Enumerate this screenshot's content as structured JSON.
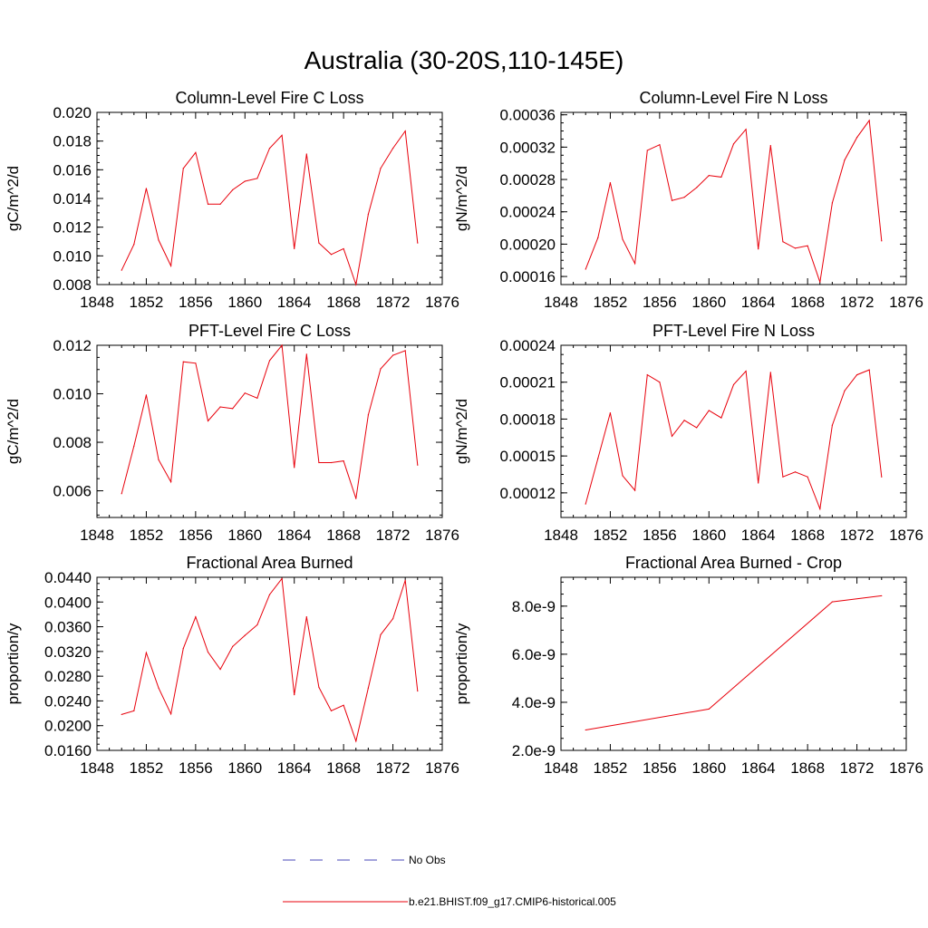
{
  "figure": {
    "title": "Australia (30-20S,110-145E)",
    "colors": {
      "model": "#e8000b",
      "obs": "#4a4ab8",
      "axis": "#000000"
    }
  },
  "legend": {
    "entries": [
      {
        "label": "No Obs",
        "style": "dashed",
        "color": "#4a4ab8"
      },
      {
        "label": "b.e21.BHIST.f09_g17.CMIP6-historical.005",
        "style": "solid",
        "color": "#e8000b"
      }
    ]
  },
  "chart_data": [
    {
      "type": "line",
      "title": "Column-Level Fire C Loss",
      "xlabel": "",
      "ylabel": "gC/m^2/d",
      "xlim": [
        1848,
        1876
      ],
      "ylim": [
        0.008,
        0.02
      ],
      "x_ticks": [
        1848,
        1852,
        1856,
        1860,
        1864,
        1868,
        1872,
        1876
      ],
      "x_tick_labels": [
        "1848",
        "1852",
        "1856",
        "1860",
        "1864",
        "1868",
        "1872",
        "1876"
      ],
      "y_ticks": [
        0.008,
        0.01,
        0.012,
        0.014,
        0.016,
        0.018,
        0.02
      ],
      "y_tick_labels": [
        "0.008",
        "0.010",
        "0.012",
        "0.014",
        "0.016",
        "0.018",
        "0.020"
      ],
      "series": [
        {
          "name": "b.e21.BHIST.f09_g17.CMIP6-historical.005",
          "x": [
            1850,
            1851,
            1852,
            1853,
            1854,
            1855,
            1856,
            1857,
            1858,
            1859,
            1860,
            1861,
            1862,
            1863,
            1864,
            1865,
            1866,
            1867,
            1868,
            1869,
            1870,
            1871,
            1872,
            1873,
            1874
          ],
          "values": [
            0.009,
            0.0108,
            0.0147,
            0.0111,
            0.0093,
            0.0161,
            0.0172,
            0.0136,
            0.0136,
            0.0146,
            0.0152,
            0.0154,
            0.0175,
            0.0184,
            0.0105,
            0.0171,
            0.0109,
            0.0101,
            0.0105,
            0.008,
            0.0129,
            0.0161,
            0.0175,
            0.0187,
            0.0109
          ]
        }
      ]
    },
    {
      "type": "line",
      "title": "Column-Level Fire N Loss",
      "xlabel": "",
      "ylabel": "gN/m^2/d",
      "xlim": [
        1848,
        1876
      ],
      "ylim": [
        0.00015,
        0.000363
      ],
      "x_ticks": [
        1848,
        1852,
        1856,
        1860,
        1864,
        1868,
        1872,
        1876
      ],
      "x_tick_labels": [
        "1848",
        "1852",
        "1856",
        "1860",
        "1864",
        "1868",
        "1872",
        "1876"
      ],
      "y_ticks": [
        0.00016,
        0.0002,
        0.00024,
        0.00028,
        0.00032,
        0.00036
      ],
      "y_tick_labels": [
        "0.00016",
        "0.00020",
        "0.00024",
        "0.00028",
        "0.00032",
        "0.00036"
      ],
      "series": [
        {
          "name": "b.e21.BHIST.f09_g17.CMIP6-historical.005",
          "x": [
            1850,
            1851,
            1852,
            1853,
            1854,
            1855,
            1856,
            1857,
            1858,
            1859,
            1860,
            1861,
            1862,
            1863,
            1864,
            1865,
            1866,
            1867,
            1868,
            1869,
            1870,
            1871,
            1872,
            1873,
            1874
          ],
          "values": [
            0.000169,
            0.000208,
            0.000276,
            0.000206,
            0.000176,
            0.000316,
            0.000323,
            0.000254,
            0.000258,
            0.00027,
            0.000285,
            0.000283,
            0.000324,
            0.000342,
            0.000194,
            0.000322,
            0.000203,
            0.000195,
            0.000198,
            0.000153,
            0.000251,
            0.000304,
            0.000332,
            0.000353,
            0.000204
          ]
        }
      ]
    },
    {
      "type": "line",
      "title": "PFT-Level Fire C Loss",
      "xlabel": "",
      "ylabel": "gC/m^2/d",
      "xlim": [
        1848,
        1876
      ],
      "ylim": [
        0.0049,
        0.012
      ],
      "x_ticks": [
        1848,
        1852,
        1856,
        1860,
        1864,
        1868,
        1872,
        1876
      ],
      "x_tick_labels": [
        "1848",
        "1852",
        "1856",
        "1860",
        "1864",
        "1868",
        "1872",
        "1876"
      ],
      "y_ticks": [
        0.006,
        0.008,
        0.01,
        0.012
      ],
      "y_tick_labels": [
        "0.006",
        "0.008",
        "0.010",
        "0.012"
      ],
      "series": [
        {
          "name": "b.e21.BHIST.f09_g17.CMIP6-historical.005",
          "x": [
            1850,
            1851,
            1852,
            1853,
            1854,
            1855,
            1856,
            1857,
            1858,
            1859,
            1860,
            1861,
            1862,
            1863,
            1864,
            1865,
            1866,
            1867,
            1868,
            1869,
            1870,
            1871,
            1872,
            1873,
            1874
          ],
          "values": [
            0.00588,
            0.00784,
            0.00995,
            0.00728,
            0.00637,
            0.01132,
            0.01126,
            0.00888,
            0.00946,
            0.00939,
            0.01003,
            0.00982,
            0.01137,
            0.012,
            0.00696,
            0.01163,
            0.00716,
            0.00716,
            0.00723,
            0.00568,
            0.00913,
            0.01103,
            0.01159,
            0.01178,
            0.00706
          ]
        }
      ]
    },
    {
      "type": "line",
      "title": "PFT-Level Fire N Loss",
      "xlabel": "",
      "ylabel": "gN/m^2/d",
      "xlim": [
        1848,
        1876
      ],
      "ylim": [
        0.0001,
        0.00024
      ],
      "x_ticks": [
        1848,
        1852,
        1856,
        1860,
        1864,
        1868,
        1872,
        1876
      ],
      "x_tick_labels": [
        "1848",
        "1852",
        "1856",
        "1860",
        "1864",
        "1868",
        "1872",
        "1876"
      ],
      "y_ticks": [
        0.00012,
        0.00015,
        0.00018,
        0.00021,
        0.00024
      ],
      "y_tick_labels": [
        "0.00012",
        "0.00015",
        "0.00018",
        "0.00021",
        "0.00024"
      ],
      "series": [
        {
          "name": "b.e21.BHIST.f09_g17.CMIP6-historical.005",
          "x": [
            1850,
            1851,
            1852,
            1853,
            1854,
            1855,
            1856,
            1857,
            1858,
            1859,
            1860,
            1861,
            1862,
            1863,
            1864,
            1865,
            1866,
            1867,
            1868,
            1869,
            1870,
            1871,
            1872,
            1873,
            1874
          ],
          "values": [
            0.000111,
            0.000148,
            0.000185,
            0.000134,
            0.000122,
            0.000216,
            0.00021,
            0.000166,
            0.000179,
            0.000173,
            0.000187,
            0.000181,
            0.000208,
            0.000219,
            0.000128,
            0.000218,
            0.000133,
            0.000137,
            0.000133,
            0.000107,
            0.000175,
            0.000203,
            0.000216,
            0.00022,
            0.000133
          ]
        }
      ]
    },
    {
      "type": "line",
      "title": "Fractional Area Burned",
      "xlabel": "",
      "ylabel": "proportion/y",
      "xlim": [
        1848,
        1876
      ],
      "ylim": [
        0.016,
        0.044
      ],
      "x_ticks": [
        1848,
        1852,
        1856,
        1860,
        1864,
        1868,
        1872,
        1876
      ],
      "x_tick_labels": [
        "1848",
        "1852",
        "1856",
        "1860",
        "1864",
        "1868",
        "1872",
        "1876"
      ],
      "y_ticks": [
        0.016,
        0.02,
        0.024,
        0.028,
        0.032,
        0.036,
        0.04,
        0.044
      ],
      "y_tick_labels": [
        "0.0160",
        "0.0200",
        "0.0240",
        "0.0280",
        "0.0320",
        "0.0360",
        "0.0400",
        "0.0440"
      ],
      "series": [
        {
          "name": "b.e21.BHIST.f09_g17.CMIP6-historical.005",
          "x": [
            1850,
            1851,
            1852,
            1853,
            1854,
            1855,
            1856,
            1857,
            1858,
            1859,
            1860,
            1861,
            1862,
            1863,
            1864,
            1865,
            1866,
            1867,
            1868,
            1869,
            1870,
            1871,
            1872,
            1873,
            1874
          ],
          "values": [
            0.0218,
            0.0224,
            0.0318,
            0.0261,
            0.0219,
            0.0325,
            0.0376,
            0.0319,
            0.0291,
            0.0328,
            0.0346,
            0.0363,
            0.0412,
            0.0438,
            0.025,
            0.0376,
            0.0262,
            0.0224,
            0.0233,
            0.0175,
            0.0261,
            0.0347,
            0.0373,
            0.0435,
            0.0256
          ]
        }
      ]
    },
    {
      "type": "line",
      "title": "Fractional Area Burned - Crop",
      "xlabel": "",
      "ylabel": "proportion/y",
      "xlim": [
        1848,
        1876
      ],
      "ylim": [
        2e-09,
        9.2e-09
      ],
      "x_ticks": [
        1848,
        1852,
        1856,
        1860,
        1864,
        1868,
        1872,
        1876
      ],
      "x_tick_labels": [
        "1848",
        "1852",
        "1856",
        "1860",
        "1864",
        "1868",
        "1872",
        "1876"
      ],
      "y_ticks": [
        2e-09,
        4e-09,
        6e-09,
        8e-09
      ],
      "y_tick_labels": [
        "2.0e-9",
        "4.0e-9",
        "6.0e-9",
        "8.0e-9"
      ],
      "series": [
        {
          "name": "b.e21.BHIST.f09_g17.CMIP6-historical.005",
          "x": [
            1850,
            1860,
            1870,
            1874
          ],
          "values": [
            2.85e-09,
            3.72e-09,
            8.18e-09,
            8.43e-09
          ]
        }
      ]
    }
  ]
}
